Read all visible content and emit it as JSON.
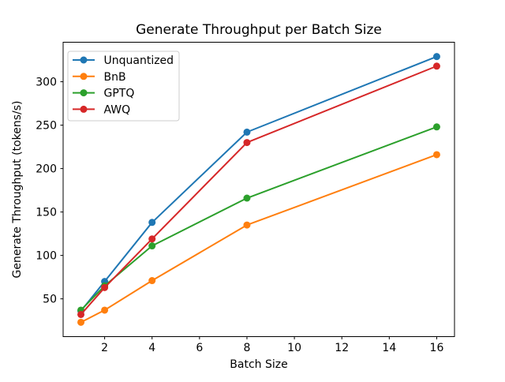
{
  "figure": {
    "background": "#ffffff"
  },
  "chart_data": {
    "type": "line",
    "title": "Generate Throughput per Batch Size",
    "xlabel": "Batch Size",
    "ylabel": "Generate Throughput (tokens/s)",
    "x": [
      1,
      2,
      4,
      8,
      16
    ],
    "series": [
      {
        "name": "Unquantized",
        "color": "#1f77b4",
        "values": [
          36,
          70,
          138,
          242,
          329
        ]
      },
      {
        "name": "BnB",
        "color": "#ff7f0e",
        "values": [
          23,
          37,
          71,
          135,
          216
        ]
      },
      {
        "name": "GPTQ",
        "color": "#2ca02c",
        "values": [
          37,
          65,
          111,
          166,
          248
        ]
      },
      {
        "name": "AWQ",
        "color": "#d62728",
        "values": [
          32,
          63,
          119,
          230,
          318
        ]
      }
    ],
    "xticks": [
      2,
      4,
      6,
      8,
      10,
      12,
      14,
      16
    ],
    "yticks": [
      50,
      100,
      150,
      200,
      250,
      300
    ],
    "xlim": [
      0.25,
      16.75
    ],
    "ylim": [
      6.5,
      345.5
    ],
    "grid": false,
    "legend_position": "upper-left",
    "marker": "o",
    "line_width": 2,
    "marker_radius": 4.5,
    "axis_color": "#000000",
    "legend_border_color": "#cccccc"
  }
}
